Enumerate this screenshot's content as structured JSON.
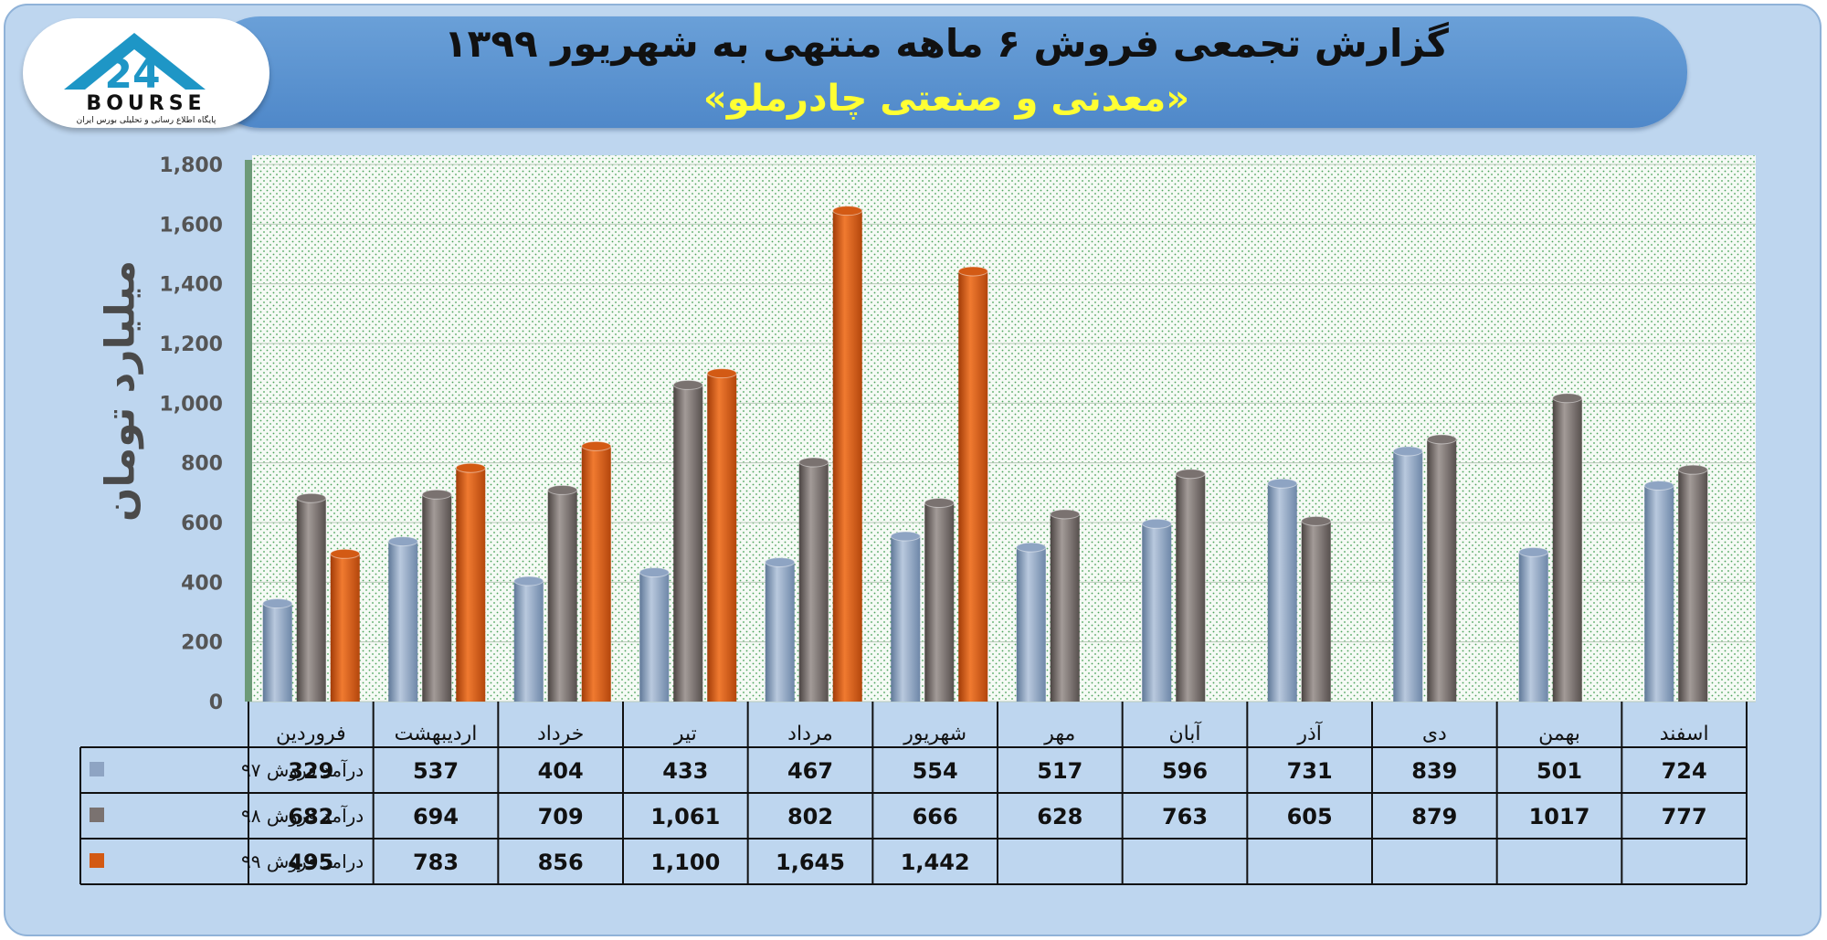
{
  "header": {
    "title": "گزارش تجمعی فروش ۶ ماهه منتهی به شهریور ۱۳۹۹",
    "subtitle": "«معدنی و صنعتی چادرملو»"
  },
  "logo": {
    "name": "BOURSE",
    "caption": "پایگاه اطلاع رسانی و تحلیلی بورس ایران"
  },
  "colors": {
    "banner": "#5b93d1",
    "title_text": "#111111",
    "subtitle_text": "#ffff33",
    "series_97": "#8ea4c3",
    "series_98": "#7a7270",
    "series_99": "#d35a14"
  },
  "chart_data": {
    "type": "bar",
    "title": "گزارش تجمعی فروش ۶ ماهه منتهی به شهریور ۱۳۹۹",
    "subtitle": "«معدنی و صنعتی چادرملو»",
    "xlabel": "",
    "ylabel": "میلیارد تومان",
    "ylim": [
      0,
      1800
    ],
    "yticks": [
      0,
      200,
      400,
      600,
      800,
      1000,
      1200,
      1400,
      1600,
      1800
    ],
    "ytick_labels": [
      "0",
      "200",
      "400",
      "600",
      "800",
      "1,000",
      "1,200",
      "1,400",
      "1,600",
      "1,800"
    ],
    "grid": true,
    "legend": "in data table, left of rows",
    "categories": [
      "فروردین",
      "اردیبهشت",
      "خرداد",
      "تیر",
      "مرداد",
      "شهریور",
      "مهر",
      "آبان",
      "آذر",
      "دی",
      "بهمن",
      "اسفند"
    ],
    "series": [
      {
        "name": "درآمد فروش ۹۷",
        "color": "#8ea4c3",
        "values": [
          329,
          537,
          404,
          433,
          467,
          554,
          517,
          596,
          731,
          839,
          501,
          724
        ],
        "labels": [
          "329",
          "537",
          "404",
          "433",
          "467",
          "554",
          "517",
          "596",
          "731",
          "839",
          "501",
          "724"
        ]
      },
      {
        "name": "درآمد فروش ۹۸",
        "color": "#7a7270",
        "values": [
          682,
          694,
          709,
          1061,
          802,
          666,
          628,
          763,
          605,
          879,
          1017,
          777
        ],
        "labels": [
          "682",
          "694",
          "709",
          "1,061",
          "802",
          "666",
          "628",
          "763",
          "605",
          "879",
          "1017",
          "777"
        ]
      },
      {
        "name": "درامد فروش ۹۹",
        "color": "#d35a14",
        "values": [
          495,
          783,
          856,
          1100,
          1645,
          1442,
          null,
          null,
          null,
          null,
          null,
          null
        ],
        "labels": [
          "495",
          "783",
          "856",
          "1,100",
          "1,645",
          "1,442",
          "",
          "",
          "",
          "",
          "",
          ""
        ]
      }
    ]
  }
}
